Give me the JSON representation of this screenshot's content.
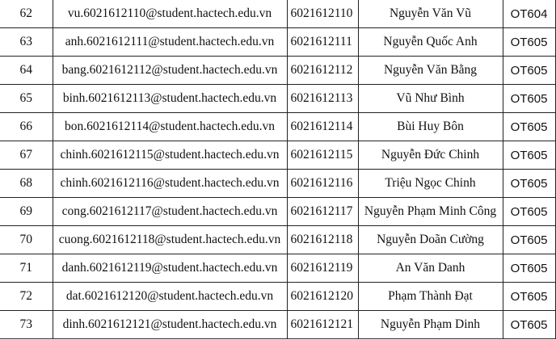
{
  "rows": [
    {
      "no": "62",
      "email": "vu.6021612110@student.hactech.edu.vn",
      "id": "6021612110",
      "name": "Nguyễn Văn Vũ",
      "class": "OT604"
    },
    {
      "no": "63",
      "email": "anh.6021612111@student.hactech.edu.vn",
      "id": "6021612111",
      "name": "Nguyễn Quốc Anh",
      "class": "OT605"
    },
    {
      "no": "64",
      "email": "bang.6021612112@student.hactech.edu.vn",
      "id": "6021612112",
      "name": "Nguyễn Văn Bằng",
      "class": "OT605"
    },
    {
      "no": "65",
      "email": "binh.6021612113@student.hactech.edu.vn",
      "id": "6021612113",
      "name": "Vũ Như Bình",
      "class": "OT605"
    },
    {
      "no": "66",
      "email": "bon.6021612114@student.hactech.edu.vn",
      "id": "6021612114",
      "name": "Bùi Huy Bôn",
      "class": "OT605"
    },
    {
      "no": "67",
      "email": "chinh.6021612115@student.hactech.edu.vn",
      "id": "6021612115",
      "name": "Nguyễn Đức Chinh",
      "class": "OT605"
    },
    {
      "no": "68",
      "email": "chinh.6021612116@student.hactech.edu.vn",
      "id": "6021612116",
      "name": "Triệu Ngọc Chinh",
      "class": "OT605"
    },
    {
      "no": "69",
      "email": "cong.6021612117@student.hactech.edu.vn",
      "id": "6021612117",
      "name": "Nguyễn Phạm Minh Công",
      "class": "OT605"
    },
    {
      "no": "70",
      "email": "cuong.6021612118@student.hactech.edu.vn",
      "id": "6021612118",
      "name": "Nguyễn Doãn Cường",
      "class": "OT605"
    },
    {
      "no": "71",
      "email": "danh.6021612119@student.hactech.edu.vn",
      "id": "6021612119",
      "name": "An Văn Danh",
      "class": "OT605"
    },
    {
      "no": "72",
      "email": "dat.6021612120@student.hactech.edu.vn",
      "id": "6021612120",
      "name": "Phạm Thành Đạt",
      "class": "OT605"
    },
    {
      "no": "73",
      "email": "dinh.6021612121@student.hactech.edu.vn",
      "id": "6021612121",
      "name": "Nguyễn Phạm Dinh",
      "class": "OT605"
    }
  ]
}
